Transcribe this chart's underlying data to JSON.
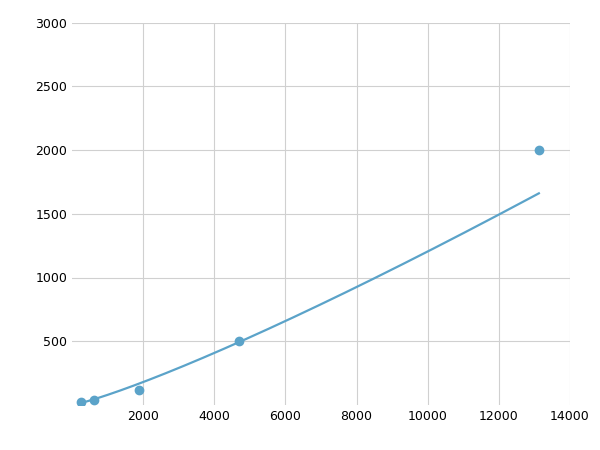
{
  "x": [
    250,
    625,
    1875,
    4688,
    13125
  ],
  "y": [
    20,
    40,
    120,
    500,
    2000
  ],
  "line_color": "#5ba3c9",
  "marker_color": "#5ba3c9",
  "marker_size": 6,
  "line_width": 1.6,
  "xlim": [
    0,
    14000
  ],
  "ylim": [
    0,
    3000
  ],
  "xticks": [
    2000,
    4000,
    6000,
    8000,
    10000,
    12000,
    14000
  ],
  "yticks": [
    500,
    1000,
    1500,
    2000,
    2500,
    3000
  ],
  "grid_color": "#d0d0d0",
  "background_color": "#ffffff",
  "tick_label_fontsize": 9
}
